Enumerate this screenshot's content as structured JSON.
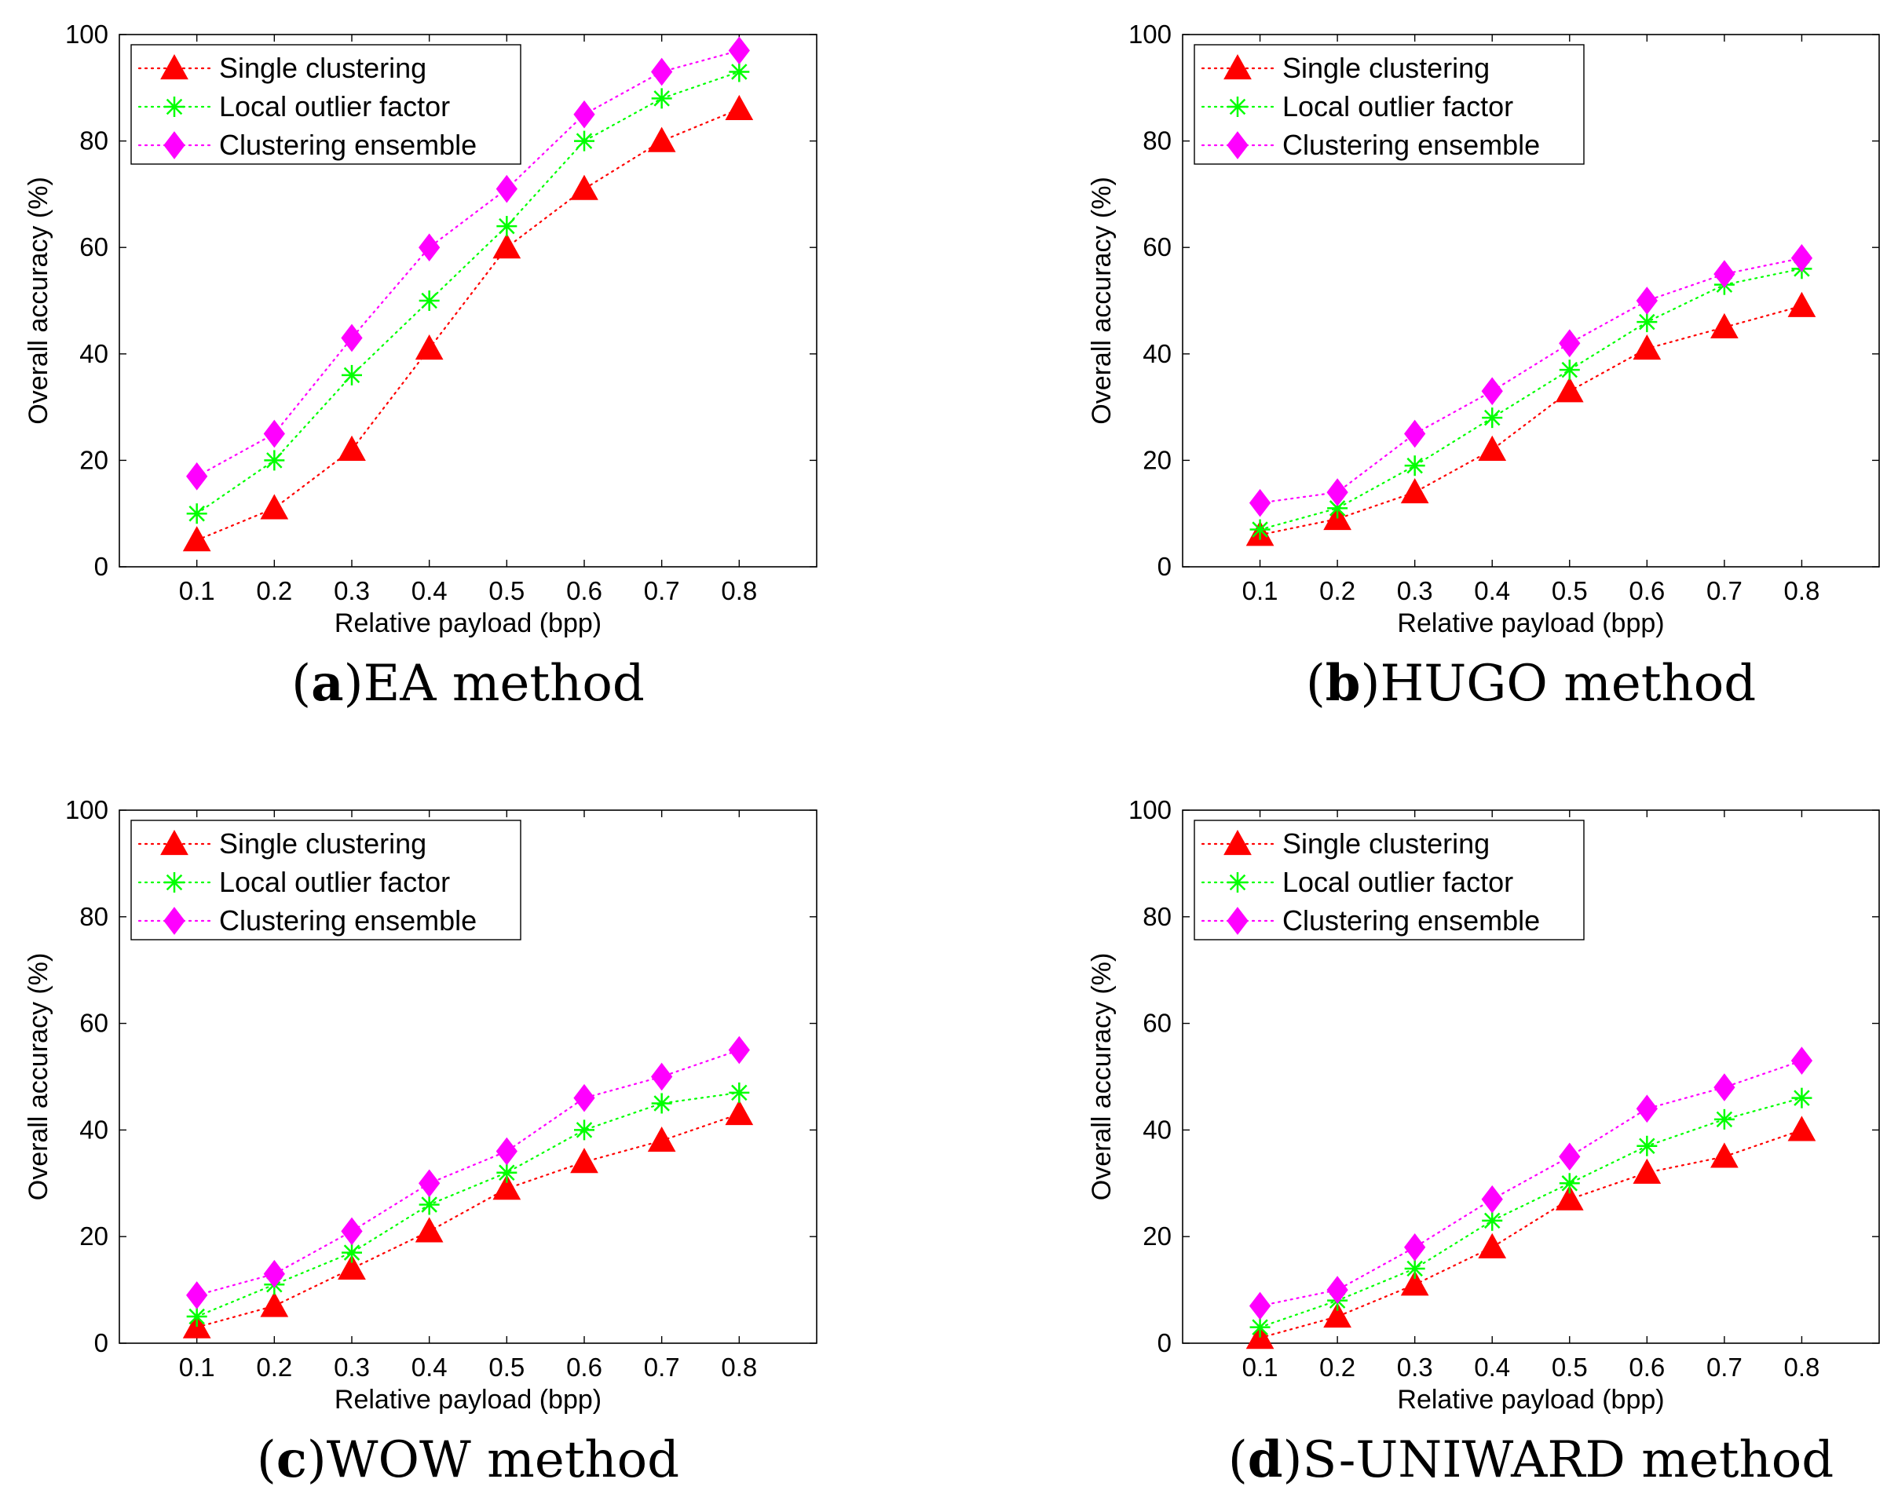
{
  "chart_data": [
    {
      "type": "line",
      "caption_letter": "a",
      "caption_text": "EA method",
      "categories": [
        "0.1",
        "0.2",
        "0.3",
        "0.4",
        "0.5",
        "0.6",
        "0.7",
        "0.8"
      ],
      "x": [
        0.1,
        0.2,
        0.3,
        0.4,
        0.5,
        0.6,
        0.7,
        0.8
      ],
      "xlabel": "Relative payload (bpp)",
      "ylabel": "Overall accuracy (%)",
      "ylim": [
        0,
        100
      ],
      "yticks": [
        "0",
        "20",
        "40",
        "60",
        "80",
        "100"
      ],
      "legend_position": "top-left",
      "series": [
        {
          "name": "Single clustering",
          "marker": "triangle",
          "color": "#ff0000",
          "values": [
            5,
            11,
            22,
            41,
            60,
            71,
            80,
            86
          ]
        },
        {
          "name": "Local outlier factor",
          "marker": "asterisk",
          "color": "#00ff00",
          "values": [
            10,
            20,
            36,
            50,
            64,
            80,
            88,
            93
          ]
        },
        {
          "name": "Clustering ensemble",
          "marker": "diamond",
          "color": "#ff00ff",
          "values": [
            17,
            25,
            43,
            60,
            71,
            85,
            93,
            97
          ]
        }
      ]
    },
    {
      "type": "line",
      "caption_letter": "b",
      "caption_text": "HUGO method",
      "categories": [
        "0.1",
        "0.2",
        "0.3",
        "0.4",
        "0.5",
        "0.6",
        "0.7",
        "0.8"
      ],
      "x": [
        0.1,
        0.2,
        0.3,
        0.4,
        0.5,
        0.6,
        0.7,
        0.8
      ],
      "xlabel": "Relative payload (bpp)",
      "ylabel": "Overall accuracy (%)",
      "ylim": [
        0,
        100
      ],
      "yticks": [
        "0",
        "20",
        "40",
        "60",
        "80",
        "100"
      ],
      "legend_position": "top-left",
      "series": [
        {
          "name": "Single clustering",
          "marker": "triangle",
          "color": "#ff0000",
          "values": [
            6,
            9,
            14,
            22,
            33,
            41,
            45,
            49
          ]
        },
        {
          "name": "Local outlier factor",
          "marker": "asterisk",
          "color": "#00ff00",
          "values": [
            7,
            11,
            19,
            28,
            37,
            46,
            53,
            56
          ]
        },
        {
          "name": "Clustering ensemble",
          "marker": "diamond",
          "color": "#ff00ff",
          "values": [
            12,
            14,
            25,
            33,
            42,
            50,
            55,
            58
          ]
        }
      ]
    },
    {
      "type": "line",
      "caption_letter": "c",
      "caption_text": "WOW method",
      "categories": [
        "0.1",
        "0.2",
        "0.3",
        "0.4",
        "0.5",
        "0.6",
        "0.7",
        "0.8"
      ],
      "x": [
        0.1,
        0.2,
        0.3,
        0.4,
        0.5,
        0.6,
        0.7,
        0.8
      ],
      "xlabel": "Relative payload (bpp)",
      "ylabel": "Overall accuracy (%)",
      "ylim": [
        0,
        100
      ],
      "yticks": [
        "0",
        "20",
        "40",
        "60",
        "80",
        "100"
      ],
      "legend_position": "top-left",
      "series": [
        {
          "name": "Single clustering",
          "marker": "triangle",
          "color": "#ff0000",
          "values": [
            3,
            7,
            14,
            21,
            29,
            34,
            38,
            43
          ]
        },
        {
          "name": "Local outlier factor",
          "marker": "asterisk",
          "color": "#00ff00",
          "values": [
            5,
            11,
            17,
            26,
            32,
            40,
            45,
            47
          ]
        },
        {
          "name": "Clustering ensemble",
          "marker": "diamond",
          "color": "#ff00ff",
          "values": [
            9,
            13,
            21,
            30,
            36,
            46,
            50,
            55
          ]
        }
      ]
    },
    {
      "type": "line",
      "caption_letter": "d",
      "caption_text": "S-UNIWARD method",
      "categories": [
        "0.1",
        "0.2",
        "0.3",
        "0.4",
        "0.5",
        "0.6",
        "0.7",
        "0.8"
      ],
      "x": [
        0.1,
        0.2,
        0.3,
        0.4,
        0.5,
        0.6,
        0.7,
        0.8
      ],
      "xlabel": "Relative payload (bpp)",
      "ylabel": "Overall accuracy (%)",
      "ylim": [
        0,
        100
      ],
      "yticks": [
        "0",
        "20",
        "40",
        "60",
        "80",
        "100"
      ],
      "legend_position": "top-left",
      "series": [
        {
          "name": "Single clustering",
          "marker": "triangle",
          "color": "#ff0000",
          "values": [
            1,
            5,
            11,
            18,
            27,
            32,
            35,
            40
          ]
        },
        {
          "name": "Local outlier factor",
          "marker": "asterisk",
          "color": "#00ff00",
          "values": [
            3,
            8,
            14,
            23,
            30,
            37,
            42,
            46
          ]
        },
        {
          "name": "Clustering ensemble",
          "marker": "diamond",
          "color": "#ff00ff",
          "values": [
            7,
            10,
            18,
            27,
            35,
            44,
            48,
            53
          ]
        }
      ]
    }
  ]
}
